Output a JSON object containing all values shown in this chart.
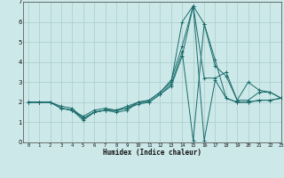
{
  "xlabel": "Humidex (Indice chaleur)",
  "background_color": "#cce8e8",
  "grid_color": "#aacccc",
  "line_color": "#1a6b6b",
  "xlim": [
    -0.5,
    23
  ],
  "ylim": [
    0,
    7
  ],
  "xticks": [
    0,
    1,
    2,
    3,
    4,
    5,
    6,
    7,
    8,
    9,
    10,
    11,
    12,
    13,
    14,
    15,
    16,
    17,
    18,
    19,
    20,
    21,
    22,
    23
  ],
  "yticks": [
    0,
    1,
    2,
    3,
    4,
    5,
    6,
    7
  ],
  "series": [
    [
      2.0,
      2.0,
      2.0,
      1.7,
      1.6,
      1.1,
      1.5,
      1.6,
      1.5,
      1.6,
      2.0,
      2.1,
      2.5,
      3.0,
      6.0,
      6.8,
      5.9,
      3.8,
      3.3,
      2.1,
      2.1,
      2.5,
      2.5,
      2.2
    ],
    [
      2.0,
      2.0,
      2.0,
      1.7,
      1.6,
      1.3,
      1.6,
      1.7,
      1.6,
      1.8,
      2.0,
      2.1,
      2.5,
      3.1,
      4.8,
      6.8,
      3.2,
      3.2,
      3.5,
      2.1,
      3.0,
      2.6,
      2.5,
      2.2
    ],
    [
      2.0,
      2.0,
      2.0,
      1.8,
      1.7,
      1.2,
      1.5,
      1.6,
      1.6,
      1.7,
      2.0,
      2.0,
      2.4,
      2.9,
      4.5,
      0.1,
      5.9,
      4.1,
      2.2,
      2.0,
      2.0,
      2.1,
      2.1,
      2.2
    ],
    [
      2.0,
      2.0,
      2.0,
      1.7,
      1.6,
      1.2,
      1.5,
      1.6,
      1.6,
      1.7,
      1.9,
      2.0,
      2.4,
      2.8,
      4.3,
      6.8,
      0.1,
      3.1,
      2.2,
      2.0,
      2.0,
      2.1,
      2.1,
      2.2
    ]
  ]
}
